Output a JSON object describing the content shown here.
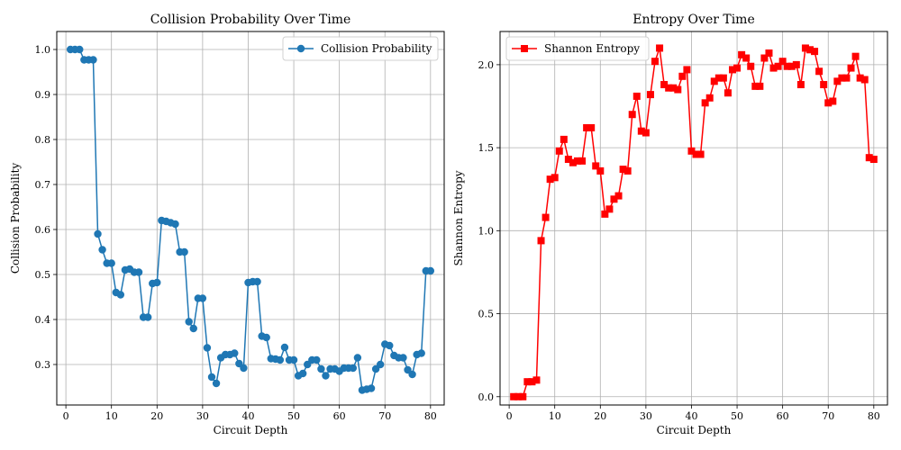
{
  "chart_data": [
    {
      "type": "line",
      "title": "Collision Probability Over Time",
      "xlabel": "Circuit Depth",
      "ylabel": "Collision Probability",
      "xlim": [
        -2,
        83
      ],
      "ylim": [
        0.21,
        1.04
      ],
      "xticks": [
        0,
        10,
        20,
        30,
        40,
        50,
        60,
        70,
        80
      ],
      "yticks": [
        0.3,
        0.4,
        0.5,
        0.6,
        0.7,
        0.8,
        0.9,
        1.0
      ],
      "ytick_labels": [
        "0.3",
        "0.4",
        "0.5",
        "0.6",
        "0.7",
        "0.8",
        "0.9",
        "1.0"
      ],
      "grid": true,
      "legend_position": "top-right",
      "series": [
        {
          "name": "Collision Probability",
          "color": "#1f77b4",
          "marker": "circle",
          "x": [
            1,
            2,
            3,
            4,
            5,
            6,
            7,
            8,
            9,
            10,
            11,
            12,
            13,
            14,
            15,
            16,
            17,
            18,
            19,
            20,
            21,
            22,
            23,
            24,
            25,
            26,
            27,
            28,
            29,
            30,
            31,
            32,
            33,
            34,
            35,
            36,
            37,
            38,
            39,
            40,
            41,
            42,
            43,
            44,
            45,
            46,
            47,
            48,
            49,
            50,
            51,
            52,
            53,
            54,
            55,
            56,
            57,
            58,
            59,
            60,
            61,
            62,
            63,
            64,
            65,
            66,
            67,
            68,
            69,
            70,
            71,
            72,
            73,
            74,
            75,
            76,
            77,
            78,
            79,
            80
          ],
          "values": [
            1.0,
            1.0,
            1.0,
            0.977,
            0.977,
            0.977,
            0.59,
            0.555,
            0.525,
            0.525,
            0.46,
            0.455,
            0.51,
            0.512,
            0.505,
            0.505,
            0.405,
            0.405,
            0.48,
            0.482,
            0.62,
            0.618,
            0.615,
            0.612,
            0.55,
            0.55,
            0.395,
            0.38,
            0.447,
            0.447,
            0.337,
            0.272,
            0.258,
            0.315,
            0.322,
            0.322,
            0.325,
            0.302,
            0.292,
            0.482,
            0.484,
            0.484,
            0.363,
            0.36,
            0.313,
            0.312,
            0.31,
            0.338,
            0.31,
            0.31,
            0.275,
            0.28,
            0.3,
            0.31,
            0.31,
            0.29,
            0.275,
            0.29,
            0.29,
            0.285,
            0.292,
            0.292,
            0.292,
            0.315,
            0.243,
            0.245,
            0.247,
            0.29,
            0.3,
            0.345,
            0.342,
            0.32,
            0.315,
            0.315,
            0.288,
            0.278,
            0.322,
            0.325,
            0.508,
            0.508
          ]
        }
      ]
    },
    {
      "type": "line",
      "title": "Entropy Over Time",
      "xlabel": "Circuit Depth",
      "ylabel": "Shannon Entropy",
      "xlim": [
        -2,
        83
      ],
      "ylim": [
        -0.05,
        2.2
      ],
      "xticks": [
        0,
        10,
        20,
        30,
        40,
        50,
        60,
        70,
        80
      ],
      "yticks": [
        0.0,
        0.5,
        1.0,
        1.5,
        2.0
      ],
      "ytick_labels": [
        "0.0",
        "0.5",
        "1.0",
        "1.5",
        "2.0"
      ],
      "grid": true,
      "legend_position": "top-left",
      "series": [
        {
          "name": "Shannon Entropy",
          "color": "#ff0000",
          "marker": "square",
          "x": [
            1,
            2,
            3,
            4,
            5,
            6,
            7,
            8,
            9,
            10,
            11,
            12,
            13,
            14,
            15,
            16,
            17,
            18,
            19,
            20,
            21,
            22,
            23,
            24,
            25,
            26,
            27,
            28,
            29,
            30,
            31,
            32,
            33,
            34,
            35,
            36,
            37,
            38,
            39,
            40,
            41,
            42,
            43,
            44,
            45,
            46,
            47,
            48,
            49,
            50,
            51,
            52,
            53,
            54,
            55,
            56,
            57,
            58,
            59,
            60,
            61,
            62,
            63,
            64,
            65,
            66,
            67,
            68,
            69,
            70,
            71,
            72,
            73,
            74,
            75,
            76,
            77,
            78,
            79,
            80
          ],
          "values": [
            0.0,
            0.0,
            0.0,
            0.09,
            0.09,
            0.1,
            0.94,
            1.08,
            1.31,
            1.32,
            1.48,
            1.55,
            1.43,
            1.41,
            1.42,
            1.42,
            1.62,
            1.62,
            1.39,
            1.36,
            1.1,
            1.13,
            1.19,
            1.21,
            1.37,
            1.36,
            1.7,
            1.81,
            1.6,
            1.59,
            1.82,
            2.02,
            2.1,
            1.88,
            1.86,
            1.86,
            1.85,
            1.93,
            1.97,
            1.48,
            1.46,
            1.46,
            1.77,
            1.8,
            1.9,
            1.92,
            1.92,
            1.83,
            1.97,
            1.98,
            2.06,
            2.04,
            1.99,
            1.87,
            1.87,
            2.04,
            2.07,
            1.98,
            1.99,
            2.02,
            1.99,
            1.99,
            2.0,
            1.88,
            2.1,
            2.09,
            2.08,
            1.96,
            1.88,
            1.77,
            1.78,
            1.9,
            1.92,
            1.92,
            1.98,
            2.05,
            1.92,
            1.91,
            1.44,
            1.43
          ]
        }
      ]
    }
  ]
}
